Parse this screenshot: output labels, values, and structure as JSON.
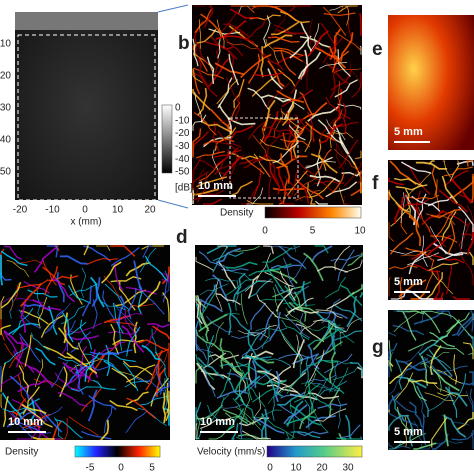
{
  "panel_a": {
    "y_ticks": [
      10,
      20,
      30,
      40,
      50
    ],
    "x_ticks": [
      -20,
      -10,
      0,
      10,
      20
    ],
    "x_label": "x (mm)",
    "colorbar_ticks": [
      0,
      -10,
      -20,
      -30,
      -40,
      -50
    ],
    "colorbar_unit": "[dB]"
  },
  "panel_b": {
    "label": "b",
    "scale_bar": "10 mm",
    "colorbar_label": "Density",
    "colorbar_ticks": [
      0,
      5,
      10
    ]
  },
  "panel_c": {
    "scale_bar": "10 mm",
    "colorbar_label": "Density",
    "colorbar_ticks": [
      -5,
      0,
      5
    ]
  },
  "panel_d": {
    "label": "d",
    "scale_bar": "10 mm",
    "colorbar_label": "Velocity (mm/s)",
    "colorbar_ticks": [
      0,
      10,
      20,
      30
    ]
  },
  "panel_e": {
    "label": "e",
    "scale_bar": "5 mm"
  },
  "panel_f": {
    "label": "f",
    "scale_bar": "5 mm"
  },
  "panel_g": {
    "label": "g",
    "scale_bar": "5 mm"
  }
}
